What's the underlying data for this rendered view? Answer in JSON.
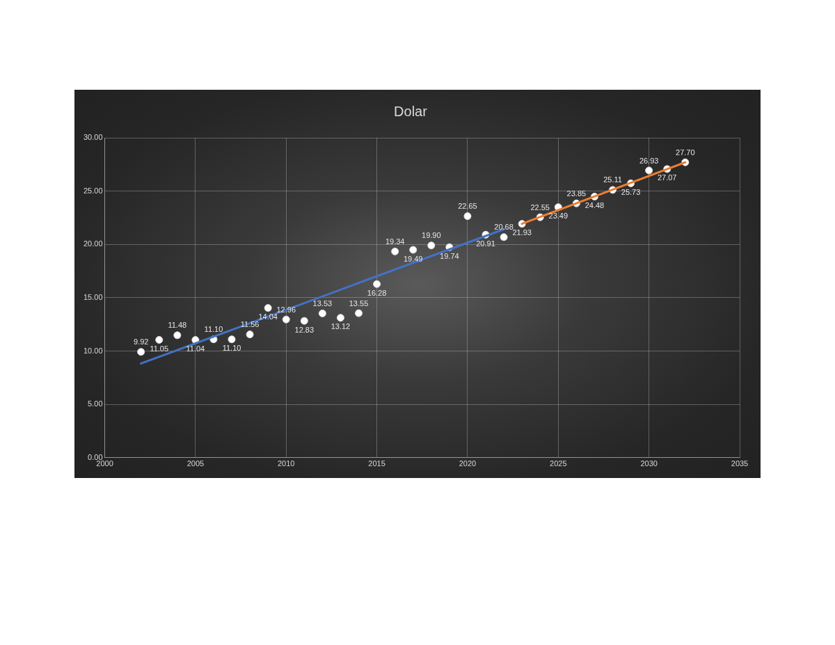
{
  "chart_data": {
    "type": "scatter",
    "title": "Dolar",
    "marker": "circle",
    "grid": true,
    "legend": false,
    "xlim": [
      2000,
      2035
    ],
    "xticks": [
      2000,
      2005,
      2010,
      2015,
      2020,
      2025,
      2030,
      2035
    ],
    "ylim": [
      0,
      30
    ],
    "yticks": [
      {
        "value": 0,
        "label": "0.00"
      },
      {
        "value": 5,
        "label": "5.00"
      },
      {
        "value": 10,
        "label": "10.00"
      },
      {
        "value": 15,
        "label": "15.00"
      },
      {
        "value": 20,
        "label": "20.00"
      },
      {
        "value": 25,
        "label": "25.00"
      },
      {
        "value": 30,
        "label": "30.00"
      }
    ],
    "series": [
      {
        "type": "scatter",
        "color": "#ffffff",
        "x": [
          2002,
          2003,
          2004,
          2005,
          2006,
          2007,
          2008,
          2009,
          2010,
          2011,
          2012,
          2013,
          2014,
          2015,
          2016,
          2017,
          2018,
          2019,
          2020,
          2021,
          2022,
          2023,
          2024,
          2025,
          2026,
          2027,
          2028,
          2029,
          2030,
          2031,
          2032
        ],
        "values": [
          9.92,
          11.05,
          11.48,
          11.04,
          11.1,
          11.1,
          11.56,
          14.04,
          12.96,
          12.83,
          13.53,
          13.12,
          13.55,
          16.28,
          19.34,
          19.49,
          19.9,
          19.74,
          22.65,
          20.91,
          20.68,
          21.93,
          22.55,
          23.49,
          23.85,
          24.48,
          25.11,
          25.73,
          26.93,
          27.07,
          27.7
        ],
        "value_labels": [
          "9.92",
          "11.05",
          "11.48",
          "11.04",
          "11.10",
          "11.10",
          "11.56",
          "14.04",
          "12.96",
          "12.83",
          "13.53",
          "13.12",
          "13.55",
          "16.28",
          "19.34",
          "19.49",
          "19.90",
          "19.74",
          "22.65",
          "20.91",
          "20.68",
          "21.93",
          "22.55",
          "23.49",
          "23.85",
          "24.48",
          "25.11",
          "25.73",
          "26.93",
          "27.07",
          "27.70"
        ]
      },
      {
        "type": "line",
        "color": "#4472c4",
        "marker": "none",
        "x": [
          2002,
          2022
        ],
        "values": [
          8.83,
          21.42
        ]
      },
      {
        "type": "line",
        "color": "#ed7d31",
        "marker": "none",
        "x": [
          2023,
          2032
        ],
        "values": [
          21.93,
          27.7
        ]
      }
    ]
  }
}
